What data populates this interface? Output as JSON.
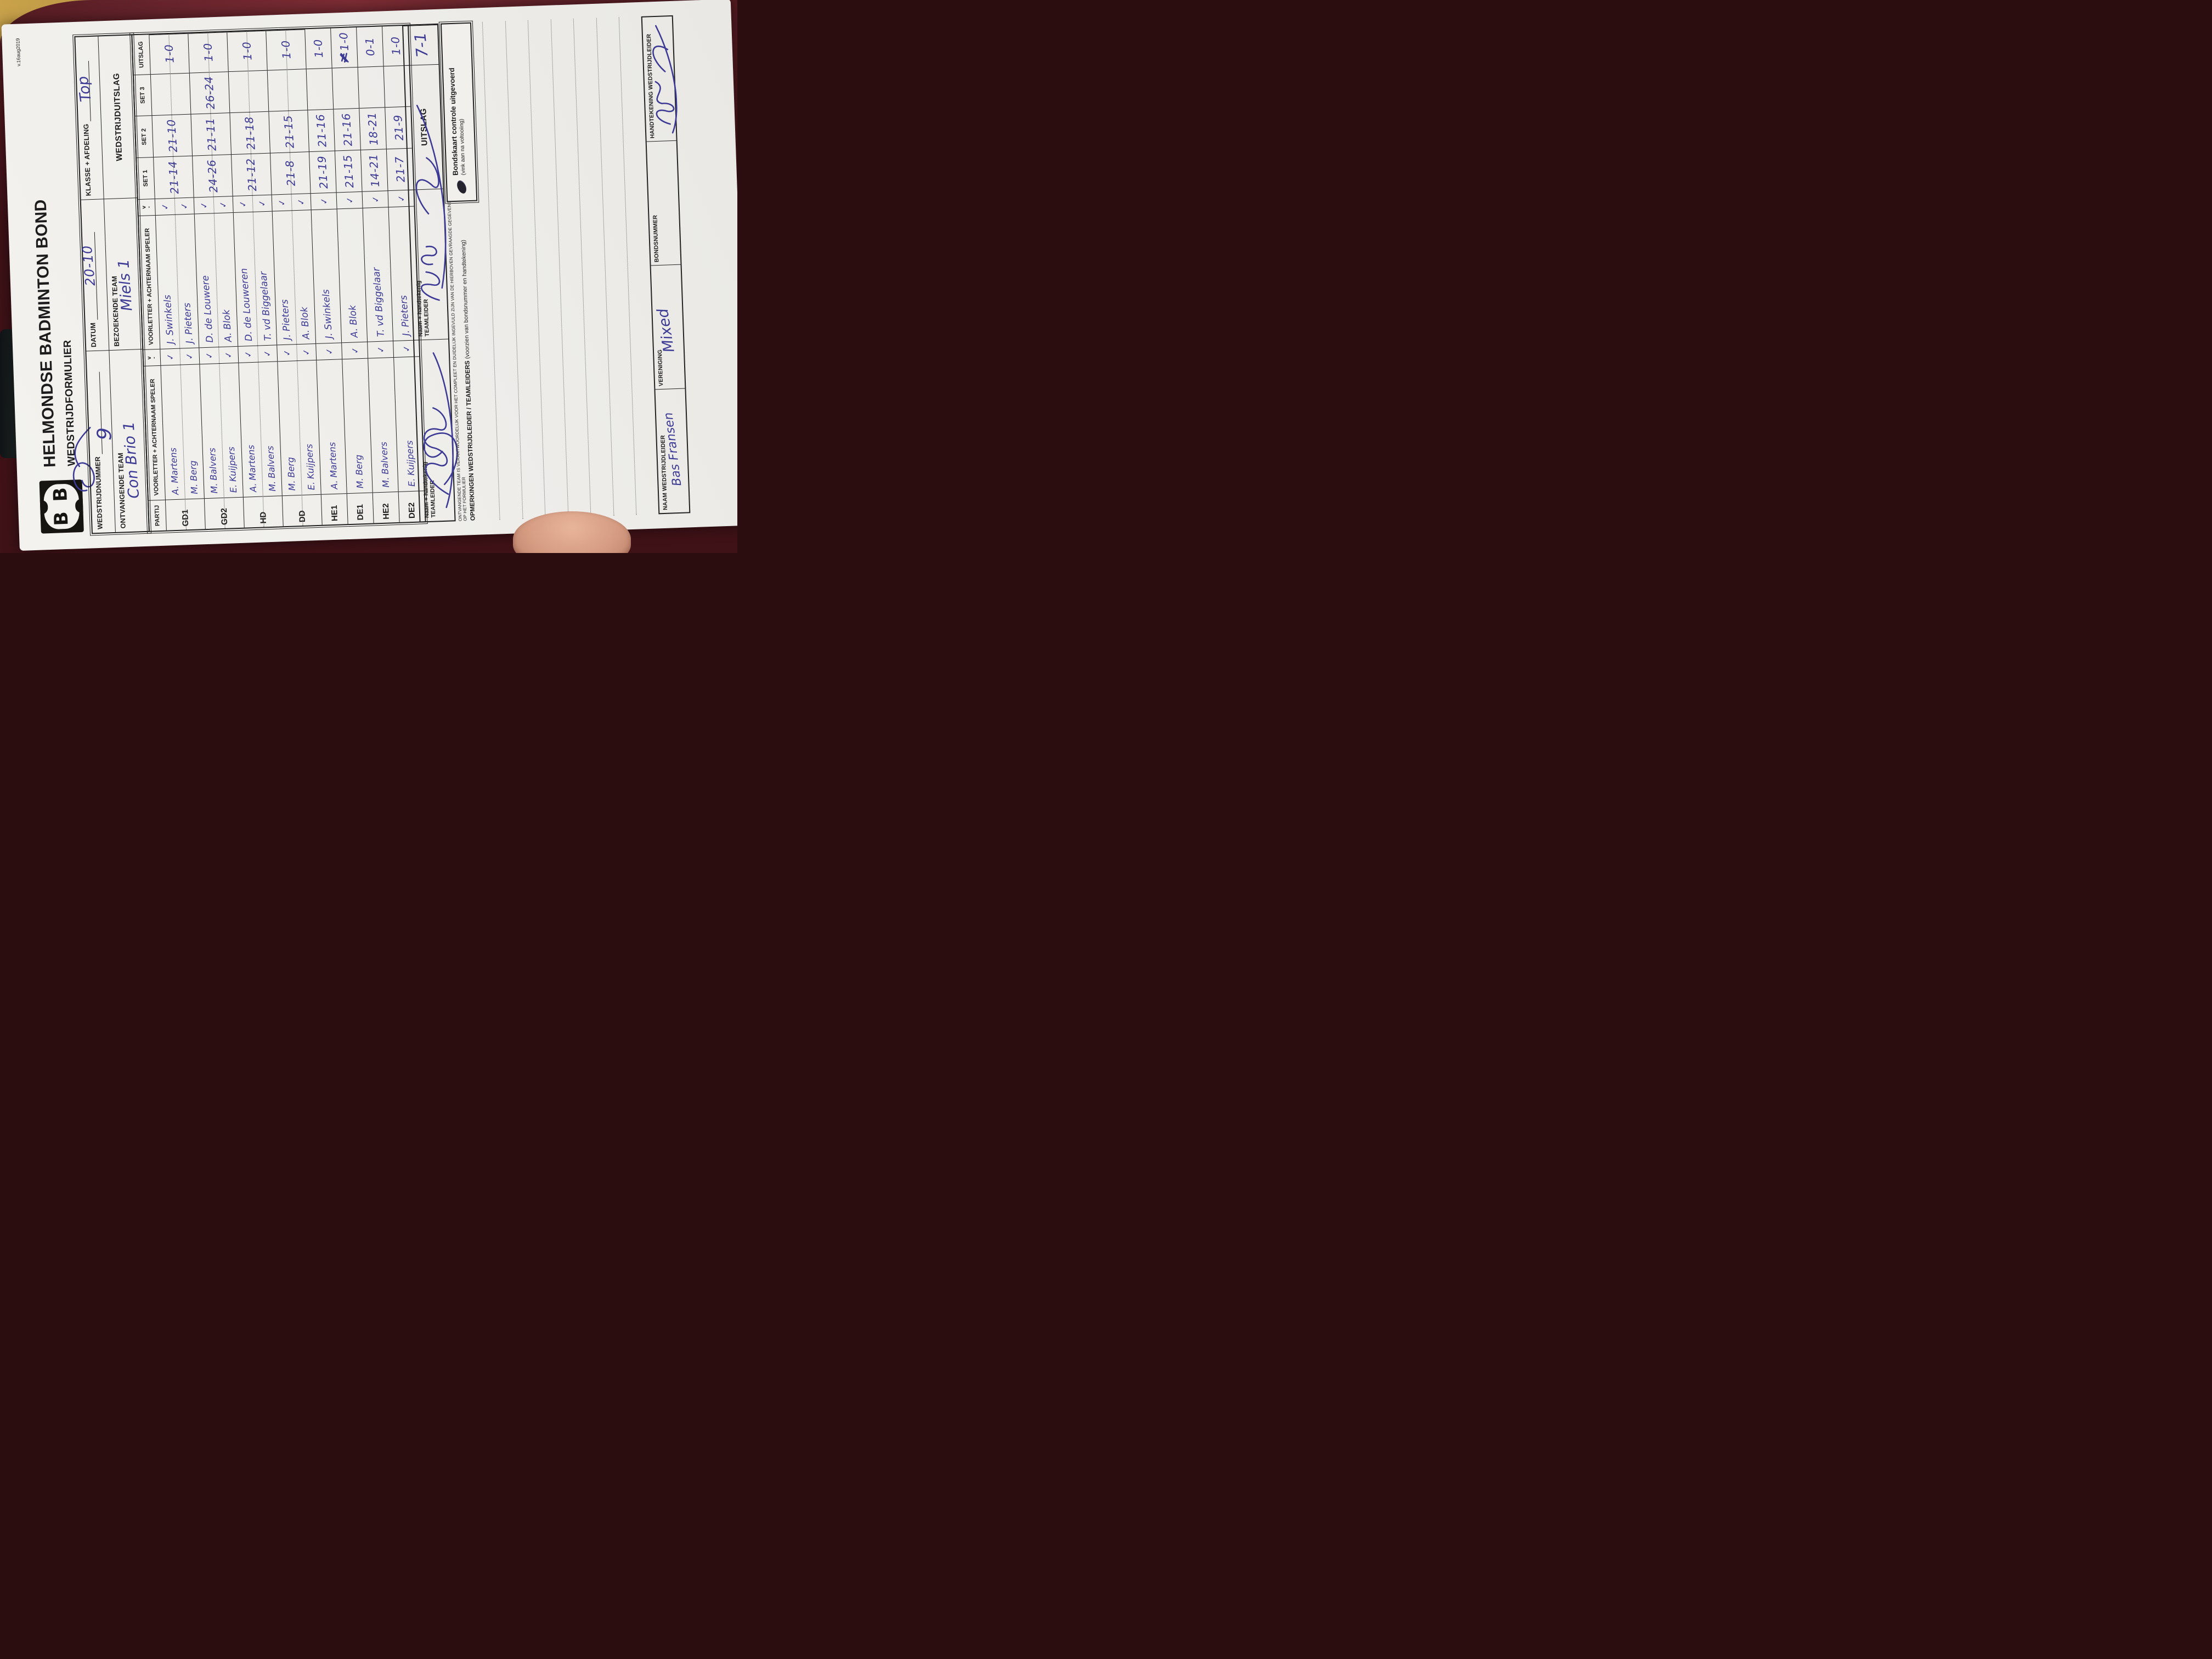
{
  "scene": {
    "desk_color": "#4e181e",
    "desk_highlight": "#7d2c34",
    "table_corner_color": "#c9a24b",
    "paper_color": "#f1f0ec",
    "ink_color": "#3c3a94",
    "print_color": "#1c1c1c"
  },
  "form": {
    "version": "v.16aug2019",
    "title": "HELMONDSE BADMINTON BOND",
    "subtitle": "WEDSTRIJDFORMULIER",
    "logo_letter": "B",
    "fields": {
      "wedstrijdnummer_label": "WEDSTRIJDNUMMER",
      "wedstrijdnummer_value": "9",
      "datum_label": "DATUM",
      "datum_value": "20-10",
      "klasse_label": "KLASSE + AFDELING",
      "klasse_value": "Top",
      "ontvangende_label": "ONTVANGENDE TEAM",
      "ontvangende_value": "Con Brio 1",
      "bezoekende_label": "BEZOEKENDE TEAM",
      "bezoekende_value": "Miels 1",
      "uitslag_group_label": "WEDSTRIJDUITSLAG"
    },
    "table": {
      "partij_header": "PARTIJ",
      "speler_header": "VOORLETTER + ACHTERNAAM SPELER",
      "check_header_top": "v",
      "check_header_bottom": "-",
      "set_headers": [
        "SET 1",
        "SET 2",
        "SET 3"
      ],
      "uitslag_header": "UITSLAG",
      "check_mark": "✓",
      "rows": [
        {
          "partij": "GD1",
          "home": [
            "A. Martens",
            "M. Berg"
          ],
          "away": [
            "J. Swinkels",
            "J. Pieters"
          ],
          "sets": [
            "21-14",
            "21-10",
            ""
          ],
          "uitslag": "1-0",
          "correction": false
        },
        {
          "partij": "GD2",
          "home": [
            "M. Balvers",
            "E. Kuijpers"
          ],
          "away": [
            "D. de Louwere",
            "A. Blok"
          ],
          "sets": [
            "24-26",
            "21-11",
            "26-24"
          ],
          "uitslag": "1-0",
          "correction": false
        },
        {
          "partij": "HD",
          "home": [
            "A. Martens",
            "M. Balvers"
          ],
          "away": [
            "D. de Louweren",
            "T. vd Biggelaar"
          ],
          "sets": [
            "21-12",
            "21-18",
            ""
          ],
          "uitslag": "1-0",
          "correction": false
        },
        {
          "partij": "DD",
          "home": [
            "M. Berg",
            "E. Kuijpers"
          ],
          "away": [
            "J. Pieters",
            "A. Blok"
          ],
          "sets": [
            "21-8",
            "21-15",
            ""
          ],
          "uitslag": "1-0",
          "correction": false
        },
        {
          "partij": "HE1",
          "home": [
            "A. Martens"
          ],
          "away": [
            "J. Swinkels"
          ],
          "sets": [
            "21-19",
            "21-16",
            ""
          ],
          "uitslag": "1-0",
          "correction": false
        },
        {
          "partij": "DE1",
          "home": [
            "M. Berg"
          ],
          "away": [
            "A. Blok"
          ],
          "sets": [
            "21-15",
            "21-16",
            ""
          ],
          "uitslag": "1-0",
          "correction": true
        },
        {
          "partij": "HE2",
          "home": [
            "M. Balvers"
          ],
          "away": [
            "T. vd Biggelaar"
          ],
          "sets": [
            "14-21",
            "18-21",
            ""
          ],
          "uitslag": "0-1",
          "correction": false
        },
        {
          "partij": "DE2",
          "home": [
            "E. Kuijpers"
          ],
          "away": [
            "J. Pieters"
          ],
          "sets": [
            "21-7",
            "21-9",
            ""
          ],
          "uitslag": "1-0",
          "correction": false
        }
      ]
    },
    "teamleider_row": {
      "home_label": "Naam + handtekenig TEAMLEIDER",
      "away_label": "Naam + handtekenig TEAMLEIDER",
      "uitslag_label": "UITSLAG",
      "uitslag_value": "7-1"
    },
    "opmerkingen": {
      "fine_print": "ONTVANGENDE TEAM IS VERANTWOORDELIJK VOOR HET COMPLEET EN DUIDELIJK INGEVULD ZIJN VAN DE HIERBOVEN GEVRAAGDE GEGEVENS OP HET FORMULIER",
      "label_bold": "OPMERKINGEN WEDSTRIJDLEIDER / TEAMLEIDERS",
      "label_normal": "(voorzien van bondsnummer en handtekening)",
      "bondskaart_label": "Bondskaart controle uitgevoerd",
      "bondskaart_sub": "(vink aan na voltooiing)",
      "ruled_line_count": 7
    },
    "footer": {
      "naam_label": "NAAM WEDSTRIJDLEIDER",
      "naam_value": "Bas Fransen",
      "vereniging_label": "VERENIGING",
      "vereniging_value": "Mixed",
      "bondsnummer_label": "BONDSNUMMER",
      "bondsnummer_value": "",
      "handtekening_label": "HANDTEKENING WEDSTRIJDLEIDER"
    }
  }
}
